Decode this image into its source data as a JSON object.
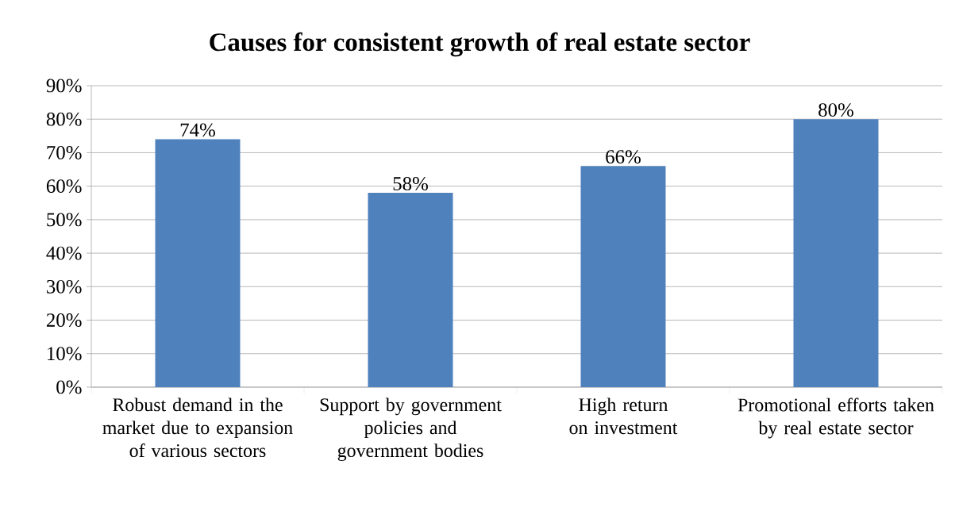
{
  "chart_data": {
    "type": "bar",
    "title": "Causes for consistent growth of real estate sector",
    "categories": [
      "Robust demand in the market due to expansion of various sectors",
      "Support by government policies and government bodies",
      "High return on investment",
      "Promotional efforts taken by real estate sector"
    ],
    "values": [
      74,
      58,
      66,
      80
    ],
    "value_labels": [
      "74%",
      "58%",
      "66%",
      "80%"
    ],
    "color": "#4f81bd",
    "ylim": [
      0,
      90
    ],
    "yticks": [
      {
        "value": 0,
        "label": "0%"
      },
      {
        "value": 10,
        "label": "10%"
      },
      {
        "value": 20,
        "label": "20%"
      },
      {
        "value": 30,
        "label": "30%"
      },
      {
        "value": 40,
        "label": "40%"
      },
      {
        "value": 50,
        "label": "50%"
      },
      {
        "value": 60,
        "label": "60%"
      },
      {
        "value": 70,
        "label": "70%"
      },
      {
        "value": 80,
        "label": "80%"
      },
      {
        "value": 90,
        "label": "90%"
      }
    ],
    "grid": "y"
  }
}
